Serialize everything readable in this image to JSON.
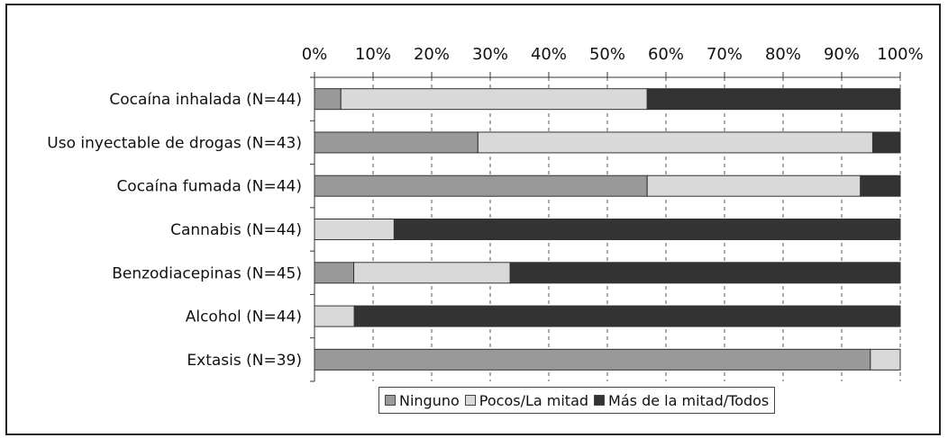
{
  "chart_data": {
    "type": "bar",
    "orientation": "horizontal",
    "stacked": "percent",
    "categories": [
      "Cocaína inhalada (N=44)",
      "Uso inyectable de drogas (N=43)",
      "Cocaína fumada (N=44)",
      "Cannabis (N=44)",
      "Benzodiacepinas (N=45)",
      "Alcohol (N=44)",
      "Extasis (N=39)"
    ],
    "series": [
      {
        "name": "Ninguno",
        "color": "#999999",
        "values": [
          4.5,
          27.9,
          56.8,
          0,
          6.7,
          0,
          94.9
        ]
      },
      {
        "name": "Pocos/La mitad",
        "color": "#d9d9d9",
        "values": [
          52.3,
          67.4,
          36.4,
          13.6,
          26.7,
          6.8,
          5.1
        ]
      },
      {
        "name": "Más de la mitad/Todos",
        "color": "#333333",
        "values": [
          43.2,
          4.7,
          6.8,
          86.4,
          66.6,
          93.2,
          0
        ]
      }
    ],
    "x_ticks": [
      "0%",
      "10%",
      "20%",
      "30%",
      "40%",
      "50%",
      "60%",
      "70%",
      "80%",
      "90%",
      "100%"
    ],
    "xlim": [
      0,
      100
    ],
    "x_axis_position": "top",
    "grid": "vertical dashed",
    "legend_position": "bottom"
  }
}
